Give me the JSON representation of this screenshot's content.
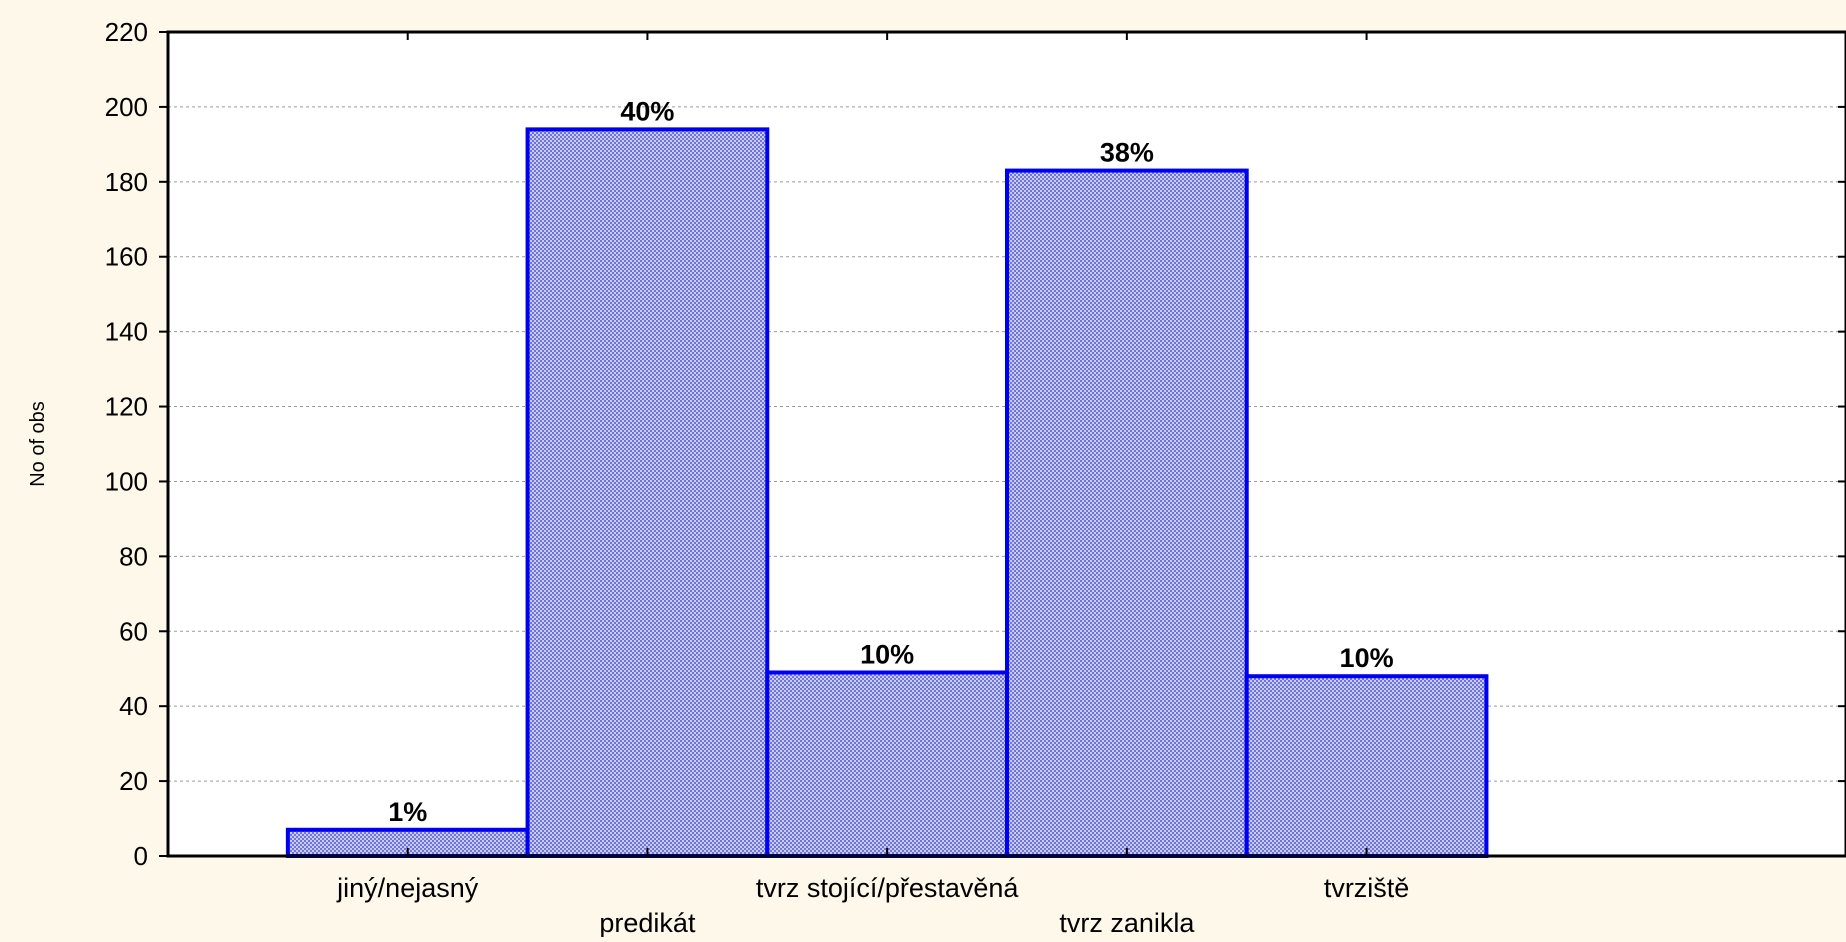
{
  "chart_data": {
    "type": "bar",
    "categories": [
      "jiný/nejasný",
      "predikát",
      "tvrz stojící/přestavěná",
      "tvrz zanikla",
      "tvrziště"
    ],
    "values": [
      7,
      194,
      49,
      183,
      48
    ],
    "data_labels": [
      "1%",
      "40%",
      "10%",
      "38%",
      "10%"
    ],
    "ylabel": "No of obs",
    "xlabel": "",
    "ylim": [
      0,
      220
    ],
    "y_ticks": [
      "0",
      "20",
      "40",
      "60",
      "80",
      "100",
      "120",
      "140",
      "160",
      "180",
      "200",
      "220"
    ],
    "category_label_rows": [
      "upper",
      "lower",
      "upper",
      "lower",
      "upper"
    ],
    "grid": true,
    "legend": "none",
    "colors": {
      "background": "#FEF8EA",
      "plot_background": "#FFFFFF",
      "bar_fill": "#C9CCF2",
      "bar_hatch": "#6E74D8",
      "bar_edge": "#0000F0",
      "grid": "#9A9A9A",
      "axis": "#000000"
    }
  }
}
